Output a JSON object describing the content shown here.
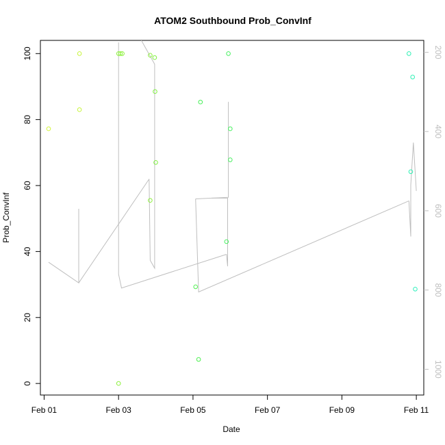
{
  "chart_data": {
    "type": "scatter",
    "title": "ATOM2 Southbound Prob_ConvInf",
    "xlabel": "Date",
    "ylabel": "Prob_ConvInf",
    "xlim": [
      0.9,
      11.2
    ],
    "ylim": [
      -3.5,
      104
    ],
    "x_ticks": [
      1,
      3,
      5,
      7,
      9,
      11
    ],
    "x_tick_labels": [
      "Feb 01",
      "Feb 03",
      "Feb 05",
      "Feb 07",
      "Feb 09",
      "Feb 11"
    ],
    "y_ticks": [
      0,
      20,
      40,
      60,
      80,
      100
    ],
    "y_tick_labels": [
      "0",
      "20",
      "40",
      "60",
      "80",
      "100"
    ],
    "y2_lim": [
      1065,
      170
    ],
    "y2_ticks": [
      200,
      400,
      600,
      800,
      1000
    ],
    "y2_tick_labels": [
      "200",
      "400",
      "600",
      "800",
      "1000"
    ],
    "points": [
      {
        "x": 1.12,
        "y": 77.2,
        "color": "#d4f53c"
      },
      {
        "x": 1.95,
        "y": 100,
        "color": "#c8f53c"
      },
      {
        "x": 1.95,
        "y": 83,
        "color": "#c8f53c"
      },
      {
        "x": 3.0,
        "y": 100,
        "color": "#8cf03c"
      },
      {
        "x": 3.05,
        "y": 100,
        "color": "#8cf03c"
      },
      {
        "x": 3.1,
        "y": 100,
        "color": "#8cf03c"
      },
      {
        "x": 3.0,
        "y": 0,
        "color": "#8cf03c"
      },
      {
        "x": 3.85,
        "y": 99.5,
        "color": "#8cf03c"
      },
      {
        "x": 3.85,
        "y": 55.5,
        "color": "#8cf03c"
      },
      {
        "x": 3.97,
        "y": 98.8,
        "color": "#80f040"
      },
      {
        "x": 3.98,
        "y": 88.5,
        "color": "#80f040"
      },
      {
        "x": 4.0,
        "y": 67,
        "color": "#80f040"
      },
      {
        "x": 5.07,
        "y": 29.3,
        "color": "#50f050"
      },
      {
        "x": 5.15,
        "y": 7.3,
        "color": "#4cf050"
      },
      {
        "x": 5.2,
        "y": 85.3,
        "color": "#48f058"
      },
      {
        "x": 5.9,
        "y": 43,
        "color": "#48f060"
      },
      {
        "x": 5.95,
        "y": 100,
        "color": "#48f060"
      },
      {
        "x": 6.0,
        "y": 77.2,
        "color": "#48f060"
      },
      {
        "x": 6.0,
        "y": 67.8,
        "color": "#48f060"
      },
      {
        "x": 10.8,
        "y": 100,
        "color": "#2ef0b4"
      },
      {
        "x": 10.85,
        "y": 64.2,
        "color": "#2ef0b4"
      },
      {
        "x": 10.9,
        "y": 92.9,
        "color": "#2ef0b4"
      },
      {
        "x": 10.97,
        "y": 28.6,
        "color": "#2ef0bc"
      }
    ],
    "line_series": {
      "axis": "y2",
      "color": "#bebebe",
      "points": [
        {
          "x": 1.12,
          "y": 730
        },
        {
          "x": 1.95,
          "y": 782
        },
        {
          "x": 1.93,
          "y": 595
        },
        {
          "x": 1.93,
          "y": 595
        },
        {
          "x": 1.95,
          "y": 782
        },
        {
          "x": 3.0,
          "y": 290
        },
        {
          "x": 3.0,
          "y": 175
        },
        {
          "x": 3.02,
          "y": 170
        },
        {
          "x": 3.0,
          "y": 760
        },
        {
          "x": 3.1,
          "y": 790
        },
        {
          "x": 3.85,
          "y": 775
        }
      ],
      "segments": [
        [
          {
            "x": 1.12,
            "y": 730
          },
          {
            "x": 1.93,
            "y": 782
          },
          {
            "x": 1.93,
            "y": 595
          }
        ],
        [
          {
            "x": 1.93,
            "y": 782
          }
        ],
        [
          {
            "x": 3.82,
            "y": 520
          },
          {
            "x": 1.93,
            "y": 782
          }
        ],
        [
          {
            "x": 3.82,
            "y": 520
          },
          {
            "x": 3.85,
            "y": 725
          },
          {
            "x": 3.97,
            "y": 745
          },
          {
            "x": 3.97,
            "y": 230
          },
          {
            "x": 3.6,
            "y": 168
          }
        ],
        [
          {
            "x": 3.0,
            "y": 175
          },
          {
            "x": 3.0,
            "y": 760
          },
          {
            "x": 3.08,
            "y": 795
          },
          {
            "x": 5.9,
            "y": 710
          }
        ],
        [
          {
            "x": 5.9,
            "y": 710
          },
          {
            "x": 5.93,
            "y": 740
          },
          {
            "x": 5.93,
            "y": 568
          },
          {
            "x": 5.5,
            "y": 568
          }
        ],
        [
          {
            "x": 5.07,
            "y": 570
          },
          {
            "x": 5.15,
            "y": 805
          },
          {
            "x": 10.8,
            "y": 575
          }
        ],
        [
          {
            "x": 10.8,
            "y": 575
          },
          {
            "x": 10.85,
            "y": 665
          },
          {
            "x": 10.85,
            "y": 535
          },
          {
            "x": 10.92,
            "y": 428
          },
          {
            "x": 11.0,
            "y": 550
          }
        ],
        [
          {
            "x": 5.07,
            "y": 570
          },
          {
            "x": 5.95,
            "y": 566
          },
          {
            "x": 5.95,
            "y": 325
          }
        ]
      ]
    }
  }
}
